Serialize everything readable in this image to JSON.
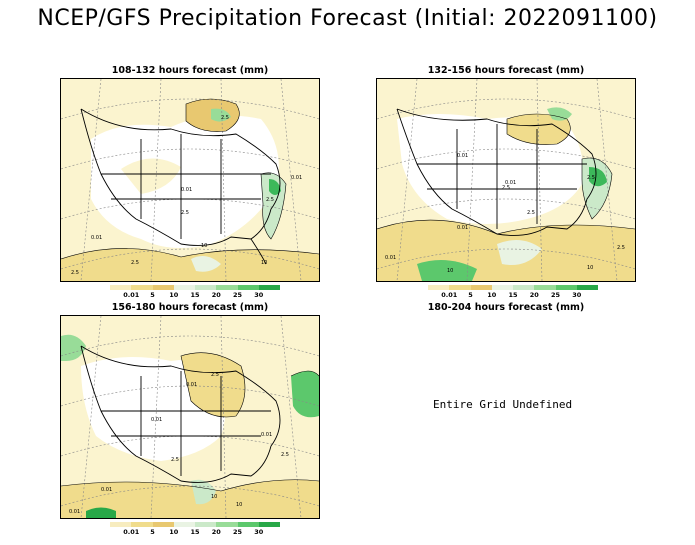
{
  "title": "NCEP/GFS Precipitation Forecast (Initial: 2022091100)",
  "legend": {
    "labels": [
      "0.01",
      "5",
      "10",
      "15",
      "20",
      "25",
      "30"
    ],
    "colors": [
      "#f7ecbf",
      "#f0dc8c",
      "#e8c870",
      "#e9f3e3",
      "#cbe9c9",
      "#98dc98",
      "#5cc86c",
      "#28a848"
    ]
  },
  "panels": [
    {
      "title": "108-132 hours forecast (mm)"
    },
    {
      "title": "132-156 hours forecast (mm)"
    },
    {
      "title": "156-180 hours forecast (mm)"
    },
    {
      "title": "180-204 hours forecast (mm)",
      "message": "Entire Grid Undefined"
    }
  ],
  "contour_labels": {
    "p1": [
      "0.01",
      "0.01",
      "2.5",
      "2.5",
      "10",
      "2.5",
      "0.01",
      "2.5",
      "10",
      "2.5"
    ],
    "p2": [
      "0.01",
      "0.01",
      "2.5",
      "0.01",
      "2.5",
      "0.01",
      "10",
      "2.5",
      "10",
      "2.5"
    ],
    "p3": [
      "0.01",
      "0.01",
      "2.5",
      "0.01",
      "10",
      "2.5",
      "0.01",
      "2.5",
      "10",
      "0.01"
    ]
  }
}
